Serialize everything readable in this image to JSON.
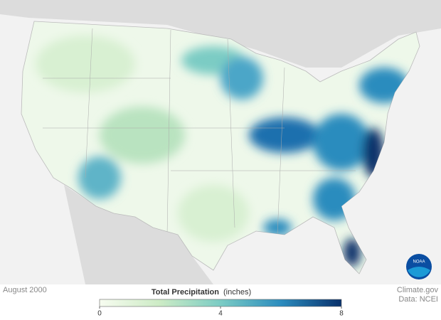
{
  "caption": "August 2000",
  "legend": {
    "title": "Total Precipitation",
    "unit": "(inches)",
    "range": [
      0,
      8
    ],
    "ticks": [
      0,
      4,
      8
    ],
    "colors": [
      "#f7fcf0",
      "#ccebc5",
      "#7bccc4",
      "#2b8cbe",
      "#08306b"
    ]
  },
  "credits": [
    "Climate.gov",
    "Data: NCEI"
  ],
  "logo": "NOAA"
}
